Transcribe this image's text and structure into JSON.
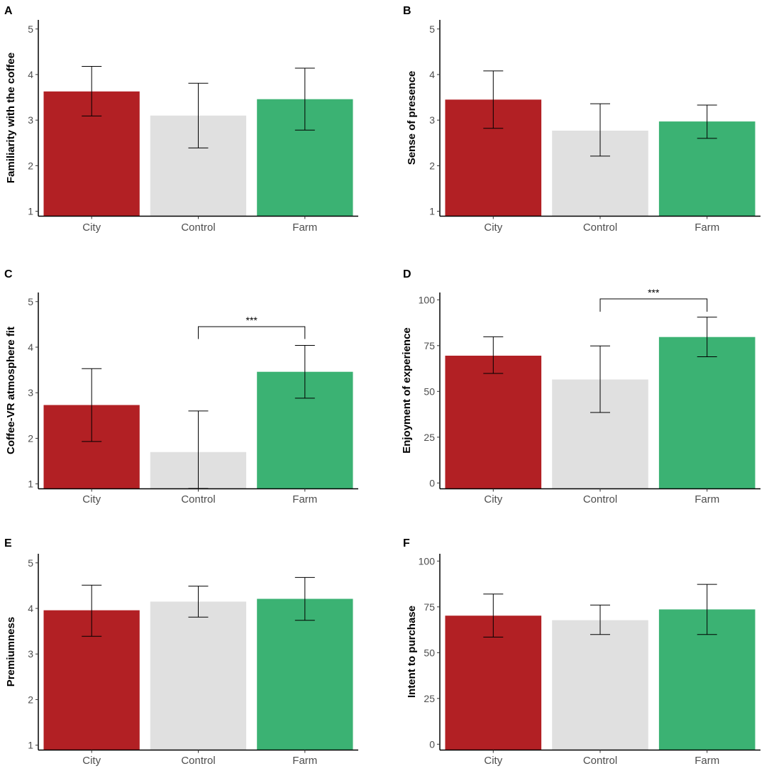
{
  "figure": {
    "colors": {
      "City": "#b22024",
      "Control": "#e0e0e0",
      "Farm": "#3bb273",
      "errorbar": "#000000",
      "axis": "#000000"
    }
  },
  "chart_data": [
    {
      "type": "bar",
      "letter": "A",
      "ylabel": "Familiarity with the coffee",
      "categories": [
        "City",
        "Control",
        "Farm"
      ],
      "values": [
        3.63,
        3.1,
        3.46
      ],
      "error_low": [
        3.09,
        2.39,
        2.78
      ],
      "error_high": [
        4.18,
        3.81,
        4.14
      ],
      "ylim": [
        0.9,
        5.2
      ],
      "yticks": [
        1,
        2,
        3,
        4,
        5
      ],
      "tick_labels": [
        "1",
        "2",
        "3",
        "4",
        "5"
      ],
      "bar_base": 0.9,
      "significance": null
    },
    {
      "type": "bar",
      "letter": "B",
      "ylabel": "Sense of presence",
      "categories": [
        "City",
        "Control",
        "Farm"
      ],
      "values": [
        3.45,
        2.77,
        2.97
      ],
      "error_low": [
        2.82,
        2.21,
        2.6
      ],
      "error_high": [
        4.08,
        3.36,
        3.33
      ],
      "ylim": [
        0.9,
        5.2
      ],
      "yticks": [
        1,
        2,
        3,
        4,
        5
      ],
      "tick_labels": [
        "1",
        "2",
        "3",
        "4",
        "5"
      ],
      "bar_base": 0.9,
      "significance": null
    },
    {
      "type": "bar",
      "letter": "C",
      "ylabel": "Coffee-VR atmosphere fit",
      "categories": [
        "City",
        "Control",
        "Farm"
      ],
      "values": [
        2.73,
        1.7,
        3.46
      ],
      "error_low": [
        1.93,
        0.9,
        2.88
      ],
      "error_high": [
        3.53,
        2.6,
        4.04
      ],
      "ylim": [
        0.9,
        5.2
      ],
      "yticks": [
        1,
        2,
        3,
        4,
        5
      ],
      "tick_labels": [
        "1",
        "2",
        "3",
        "4",
        "5"
      ],
      "bar_base": 0.9,
      "significance": {
        "from": "Control",
        "to": "Farm",
        "level": 4.45,
        "drop": 4.18,
        "label": "***"
      }
    },
    {
      "type": "bar",
      "letter": "D",
      "ylabel": "Enjoyment of experience",
      "categories": [
        "City",
        "Control",
        "Farm"
      ],
      "values": [
        69.5,
        56.5,
        79.7
      ],
      "error_low": [
        59.8,
        38.5,
        68.9
      ],
      "error_high": [
        79.8,
        74.8,
        90.5
      ],
      "ylim": [
        -3,
        104
      ],
      "yticks": [
        0,
        25,
        50,
        75,
        100
      ],
      "tick_labels": [
        "0",
        "25",
        "50",
        "75",
        "100"
      ],
      "bar_base": -3,
      "significance": {
        "from": "Control",
        "to": "Farm",
        "level": 100.5,
        "drop": 93.5,
        "label": "***"
      }
    },
    {
      "type": "bar",
      "letter": "E",
      "ylabel": "Premiumness",
      "categories": [
        "City",
        "Control",
        "Farm"
      ],
      "values": [
        3.96,
        4.15,
        4.21
      ],
      "error_low": [
        3.39,
        3.81,
        3.74
      ],
      "error_high": [
        4.51,
        4.49,
        4.68
      ],
      "ylim": [
        0.9,
        5.2
      ],
      "yticks": [
        1,
        2,
        3,
        4,
        5
      ],
      "tick_labels": [
        "1",
        "2",
        "3",
        "4",
        "5"
      ],
      "bar_base": 0.9,
      "significance": null
    },
    {
      "type": "bar",
      "letter": "F",
      "ylabel": "Intent to purchase",
      "categories": [
        "City",
        "Control",
        "Farm"
      ],
      "values": [
        70.2,
        67.7,
        73.6
      ],
      "error_low": [
        58.5,
        59.9,
        59.9
      ],
      "error_high": [
        82.0,
        76.0,
        87.3
      ],
      "ylim": [
        -3,
        104
      ],
      "yticks": [
        0,
        25,
        50,
        75,
        100
      ],
      "tick_labels": [
        "0",
        "25",
        "50",
        "75",
        "100"
      ],
      "bar_base": -3,
      "significance": null
    }
  ]
}
